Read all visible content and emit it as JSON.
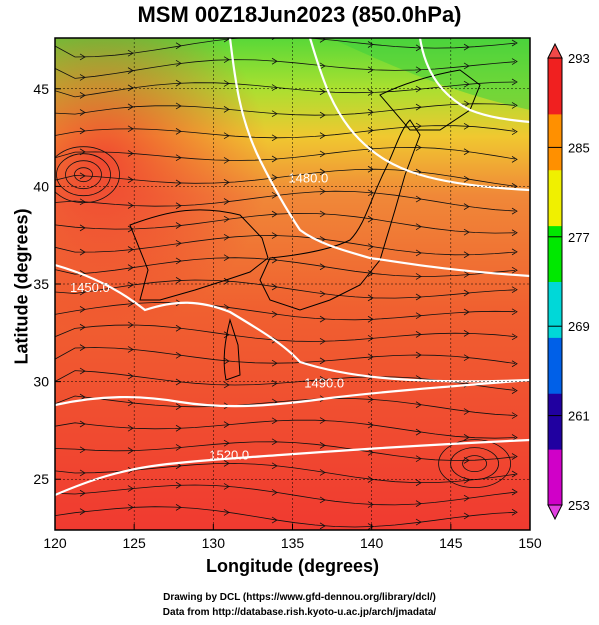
{
  "chart_data": {
    "type": "heatmap",
    "title": "MSM 00Z18Jun2023 (850.0hPa)",
    "xlabel": "Longitude (degrees)",
    "ylabel": "Latitude  (degrees)",
    "xlim": [
      120,
      150
    ],
    "ylim": [
      22.4,
      47.6
    ],
    "x_ticks": [
      "120",
      "125",
      "130",
      "135",
      "140",
      "145",
      "150"
    ],
    "y_ticks": [
      "25",
      "30",
      "35",
      "40",
      "45"
    ],
    "colorbar": {
      "ticks": [
        "293",
        "285",
        "277",
        "269",
        "261",
        "253"
      ],
      "range": [
        253,
        293
      ],
      "colors": [
        "#d000c8",
        "#2000a0",
        "#0060e8",
        "#00d8d8",
        "#00e800",
        "#f0f000",
        "#ff9000",
        "#f02020"
      ]
    },
    "contours": [
      {
        "label": "1480.0",
        "label_lon": 136.0,
        "label_lat": 40.2
      },
      {
        "label": "1450.0",
        "label_lon": 122.2,
        "label_lat": 34.6
      },
      {
        "label": "1490.0",
        "label_lon": 137.0,
        "label_lat": 29.7
      },
      {
        "label": "1520.0",
        "label_lon": 131.0,
        "label_lat": 26.0
      }
    ]
  },
  "credits": {
    "line1": "Drawing by DCL (https://www.gfd-dennou.org/library/dcl/)",
    "line2": "Data from http://database.rish.kyoto-u.ac.jp/arch/jmadata/"
  }
}
